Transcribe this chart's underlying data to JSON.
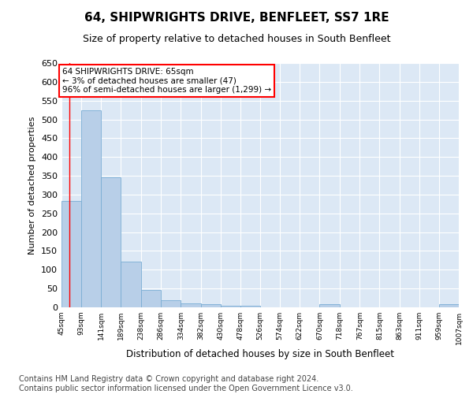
{
  "title": "64, SHIPWRIGHTS DRIVE, BENFLEET, SS7 1RE",
  "subtitle": "Size of property relative to detached houses in South Benfleet",
  "xlabel": "Distribution of detached houses by size in South Benfleet",
  "ylabel": "Number of detached properties",
  "bar_color": "#b8cfe8",
  "bar_edge_color": "#7aadd4",
  "annotation_text": "64 SHIPWRIGHTS DRIVE: 65sqm\n← 3% of detached houses are smaller (47)\n96% of semi-detached houses are larger (1,299) →",
  "property_line_x": 65,
  "ylim": [
    0,
    650
  ],
  "yticks": [
    0,
    50,
    100,
    150,
    200,
    250,
    300,
    350,
    400,
    450,
    500,
    550,
    600,
    650
  ],
  "bin_edges": [
    45,
    93,
    141,
    189,
    238,
    286,
    334,
    382,
    430,
    478,
    526,
    574,
    622,
    670,
    718,
    767,
    815,
    863,
    911,
    959,
    1007
  ],
  "bar_heights": [
    283,
    524,
    347,
    122,
    47,
    19,
    11,
    9,
    5,
    4,
    0,
    0,
    0,
    8,
    0,
    0,
    0,
    0,
    0,
    8
  ],
  "xtick_labels": [
    "45sqm",
    "93sqm",
    "141sqm",
    "189sqm",
    "238sqm",
    "286sqm",
    "334sqm",
    "382sqm",
    "430sqm",
    "478sqm",
    "526sqm",
    "574sqm",
    "622sqm",
    "670sqm",
    "718sqm",
    "767sqm",
    "815sqm",
    "863sqm",
    "911sqm",
    "959sqm",
    "1007sqm"
  ],
  "footer": "Contains HM Land Registry data © Crown copyright and database right 2024.\nContains public sector information licensed under the Open Government Licence v3.0.",
  "plot_bg_color": "#dce8f5",
  "fig_bg_color": "#ffffff",
  "grid_color": "#ffffff",
  "title_fontsize": 11,
  "subtitle_fontsize": 9,
  "footer_fontsize": 7
}
